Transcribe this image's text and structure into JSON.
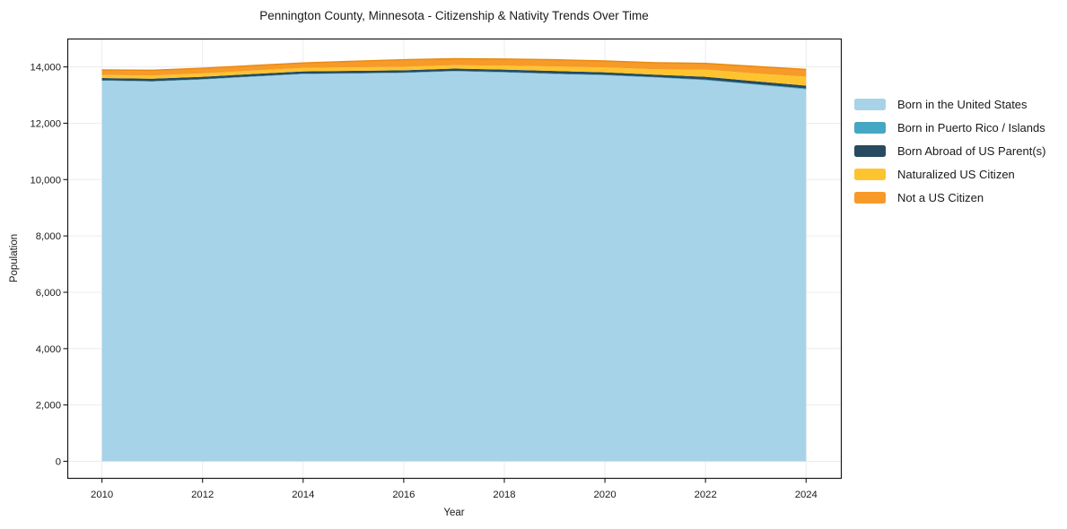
{
  "figure": {
    "title": "Pennington County, Minnesota - Citizenship & Nativity Trends Over Time",
    "xlabel": "Year",
    "ylabel": "Population",
    "background_color": "#ffffff",
    "spine_color": "#1a1a1a",
    "grid_color": "#ececec",
    "tick_color": "#1a1a1a",
    "text_color": "#1a1a1a",
    "total_edge_color": "#e8890f"
  },
  "chart_data": {
    "type": "area",
    "stacked": true,
    "title": "Pennington County, Minnesota - Citizenship & Nativity Trends Over Time",
    "xlabel": "Year",
    "ylabel": "Population",
    "grid": true,
    "legend_position": "right-outside",
    "x": [
      2010,
      2011,
      2012,
      2013,
      2014,
      2015,
      2016,
      2017,
      2018,
      2019,
      2020,
      2021,
      2022,
      2023,
      2024
    ],
    "series": [
      {
        "name": "Born in the United States",
        "color": "#a7d3e9",
        "values": [
          13510,
          13480,
          13550,
          13650,
          13745,
          13760,
          13785,
          13840,
          13800,
          13745,
          13700,
          13620,
          13525,
          13365,
          13205
        ]
      },
      {
        "name": "Born in Puerto Rico / Islands",
        "color": "#45a7c3",
        "values": [
          15,
          15,
          15,
          15,
          15,
          15,
          15,
          20,
          20,
          20,
          20,
          20,
          25,
          25,
          30
        ]
      },
      {
        "name": "Born Abroad of US Parent(s)",
        "color": "#264a60",
        "values": [
          80,
          85,
          85,
          85,
          80,
          85,
          80,
          80,
          85,
          90,
          90,
          85,
          100,
          100,
          100
        ]
      },
      {
        "name": "Naturalized US Citizen",
        "color": "#fdc430",
        "values": [
          110,
          115,
          120,
          120,
          125,
          125,
          125,
          120,
          140,
          160,
          170,
          190,
          255,
          275,
          320
        ]
      },
      {
        "name": "Not a US Citizen",
        "color": "#f79a28",
        "values": [
          180,
          185,
          185,
          180,
          175,
          215,
          250,
          230,
          235,
          240,
          230,
          235,
          220,
          250,
          255
        ]
      }
    ],
    "totals": [
      13895,
      13880,
      13955,
      14050,
      14140,
      14200,
      14255,
      14290,
      14280,
      14255,
      14210,
      14150,
      14125,
      14015,
      13910
    ],
    "xtick_values": [
      2010,
      2012,
      2014,
      2016,
      2018,
      2020,
      2022,
      2024
    ],
    "xtick_labels": [
      "2010",
      "2012",
      "2014",
      "2016",
      "2018",
      "2020",
      "2022",
      "2024"
    ],
    "ytick_values": [
      0,
      2000,
      4000,
      6000,
      8000,
      10000,
      12000,
      14000
    ],
    "ytick_labels": [
      "0",
      "2,000",
      "4,000",
      "6,000",
      "8,000",
      "10,000",
      "12,000",
      "14,000"
    ],
    "xlim": [
      2009.32,
      2024.7
    ],
    "ylim": [
      -605,
      14990
    ]
  }
}
